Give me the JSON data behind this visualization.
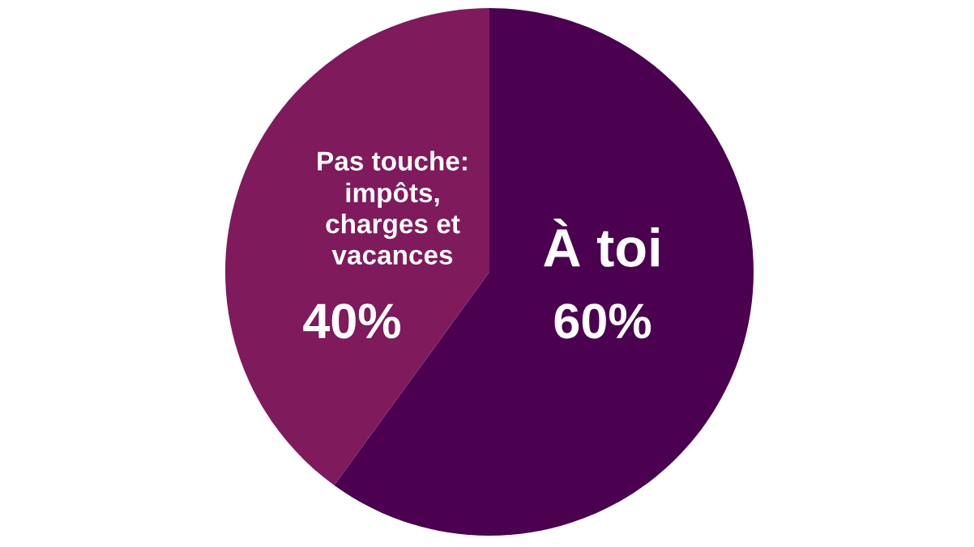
{
  "chart_data": {
    "type": "pie",
    "categories": [
      "À toi",
      "Pas touche: impôts, charges et vacances"
    ],
    "values": [
      60,
      40
    ],
    "colors": [
      "#4b0050",
      "#7f1a5c"
    ],
    "value_labels": [
      "60%",
      "40%"
    ],
    "legend": false
  }
}
